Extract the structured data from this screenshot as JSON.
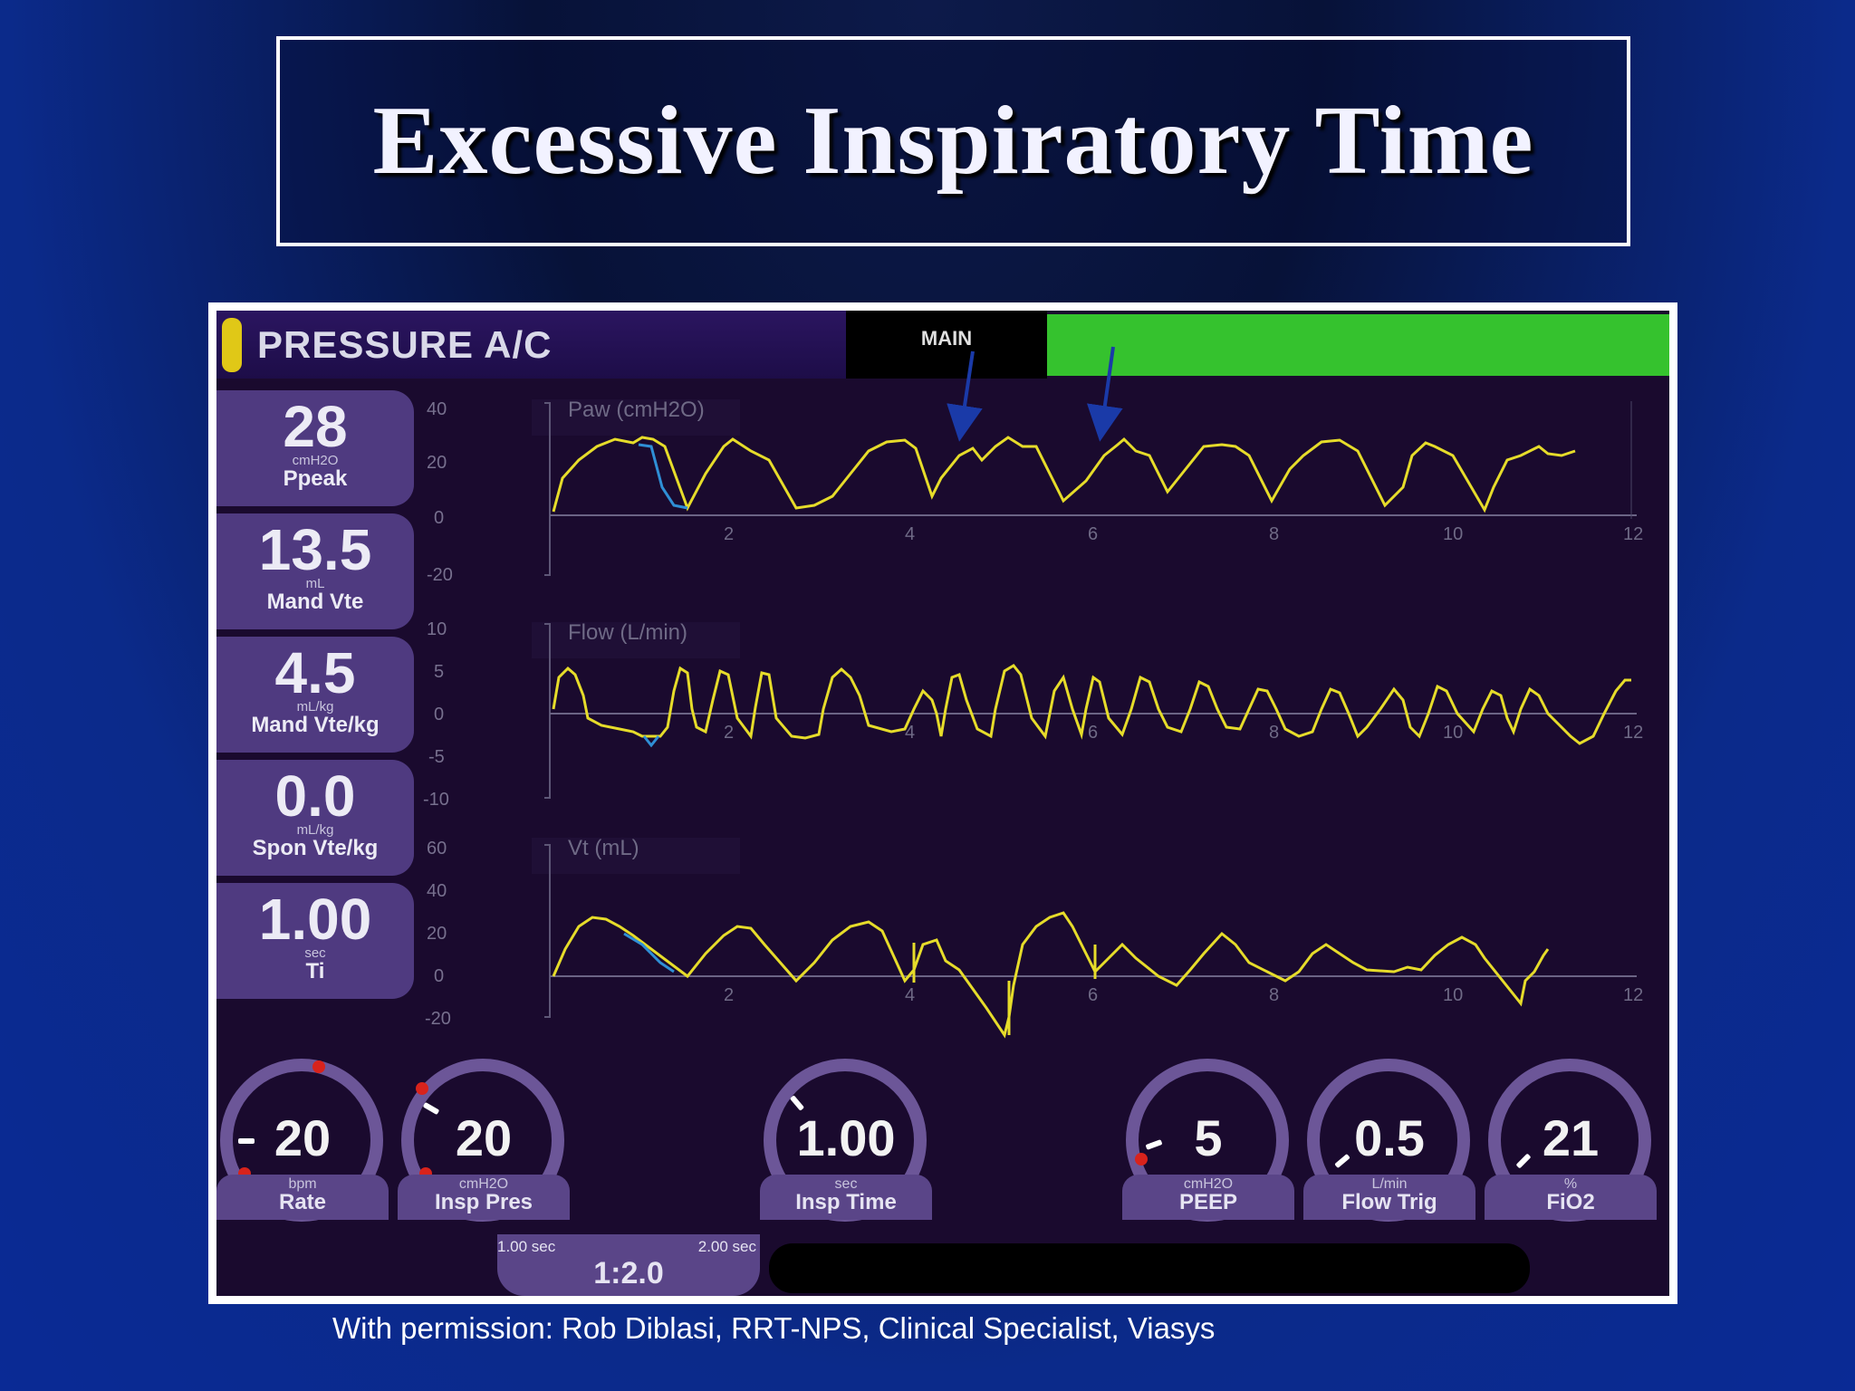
{
  "slide": {
    "title": "Excessive Inspiratory Time",
    "caption": "With permission: Rob Diblasi, RRT-NPS, Clinical Specialist, Viasys"
  },
  "ventilator": {
    "mode": "PRESSURE A/C",
    "tab": "MAIN",
    "colors": {
      "inspiration": "#e6dc2a",
      "expiration": "#2f8fd6",
      "status": "#35c22e"
    },
    "readouts": [
      {
        "value": "28",
        "unit": "cmH2O",
        "label": "Ppeak"
      },
      {
        "value": "13.5",
        "unit": "mL",
        "label": "Mand Vte"
      },
      {
        "value": "4.5",
        "unit": "mL/kg",
        "label": "Mand Vte/kg"
      },
      {
        "value": "0.0",
        "unit": "mL/kg",
        "label": "Spon Vte/kg"
      },
      {
        "value": "1.00",
        "unit": "sec",
        "label": "Ti"
      }
    ],
    "charts": [
      {
        "title": "Paw (cmH2O)",
        "yticks": [
          "40",
          "20",
          "0",
          "-20"
        ],
        "xticks": [
          "2",
          "4",
          "6",
          "8",
          "10",
          "12"
        ]
      },
      {
        "title": "Flow (L/min)",
        "yticks": [
          "10",
          "5",
          "0",
          "-5",
          "-10"
        ],
        "xticks": [
          "2",
          "4",
          "6",
          "8",
          "10",
          "12"
        ]
      },
      {
        "title": "Vt (mL)",
        "yticks": [
          "60",
          "40",
          "20",
          "0",
          "-20"
        ],
        "xticks": [
          "2",
          "4",
          "6",
          "8",
          "10",
          "12"
        ]
      }
    ],
    "settings": [
      {
        "value": "20",
        "unit": "bpm",
        "label": "Rate"
      },
      {
        "value": "20",
        "unit": "cmH2O",
        "label": "Insp Pres"
      },
      {
        "value": "1.00",
        "unit": "sec",
        "label": "Insp Time"
      },
      {
        "value": "5",
        "unit": "cmH2O",
        "label": "PEEP"
      },
      {
        "value": "0.5",
        "unit": "L/min",
        "label": "Flow Trig"
      },
      {
        "value": "21",
        "unit": "%",
        "label": "FiO2"
      }
    ],
    "ie_ratio": {
      "insp": "1.00 sec",
      "exp": "2.00 sec",
      "value": "1:2.0"
    }
  }
}
